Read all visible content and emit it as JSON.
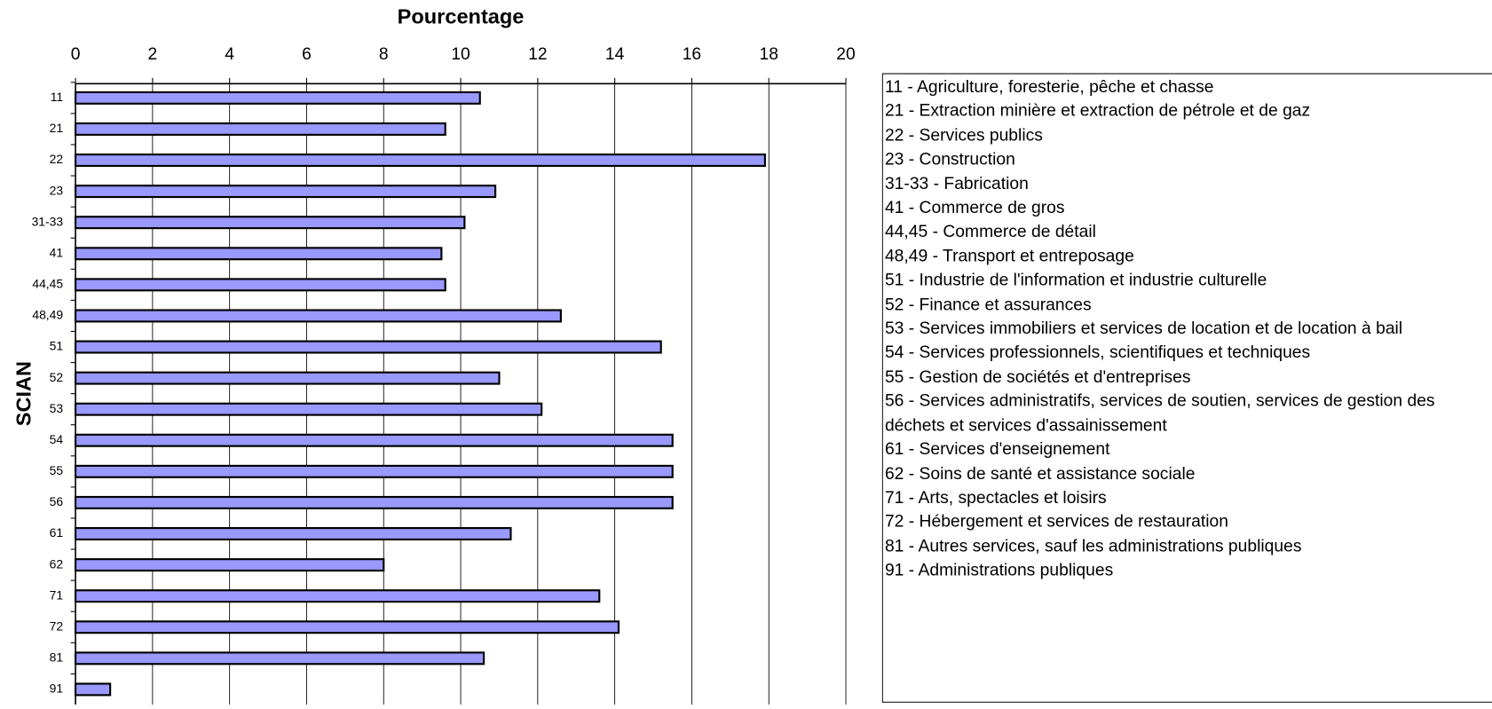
{
  "chart_data": {
    "type": "hbar",
    "xlabel": "Pourcentage",
    "ylabel": "SCIAN",
    "categories": [
      "11",
      "21",
      "22",
      "23",
      "31-33",
      "41",
      "44,45",
      "48,49",
      "51",
      "52",
      "53",
      "54",
      "55",
      "56",
      "61",
      "62",
      "71",
      "72",
      "81",
      "91"
    ],
    "values": [
      10.5,
      9.6,
      17.9,
      10.9,
      10.1,
      9.5,
      9.6,
      12.6,
      15.2,
      11.0,
      12.1,
      15.5,
      15.5,
      15.5,
      11.3,
      8.0,
      13.6,
      14.1,
      10.6,
      0.9
    ],
    "color": "#9999ff",
    "xlim": [
      0,
      20
    ],
    "xticks": [
      0,
      2,
      4,
      6,
      8,
      10,
      12,
      14,
      16,
      18,
      20
    ],
    "grid": true,
    "legend_items": [
      "11 - Agriculture, foresterie, pêche et chasse",
      "21 - Extraction minière et extraction de pétrole et de gaz",
      "22 - Services publics",
      "23 - Construction",
      "31-33 - Fabrication",
      "41 - Commerce de gros",
      "44,45 - Commerce de détail",
      "48,49 - Transport et entreposage",
      "51 - Industrie de l'information et industrie culturelle",
      "52 - Finance et assurances",
      "53 - Services immobiliers et services de location et de location à bail",
      "54 - Services professionnels, scientifiques et techniques",
      "55 - Gestion de sociétés et d'entreprises",
      "56 - Services administratifs, services de soutien, services de gestion des déchets et services d'assainissement",
      "61 - Services d'enseignement",
      "62 - Soins de santé et assistance sociale",
      "71 - Arts, spectacles et loisirs",
      "72 - Hébergement et services de restauration",
      "81 - Autres services, sauf les administrations publiques",
      "91 - Administrations publiques"
    ]
  }
}
